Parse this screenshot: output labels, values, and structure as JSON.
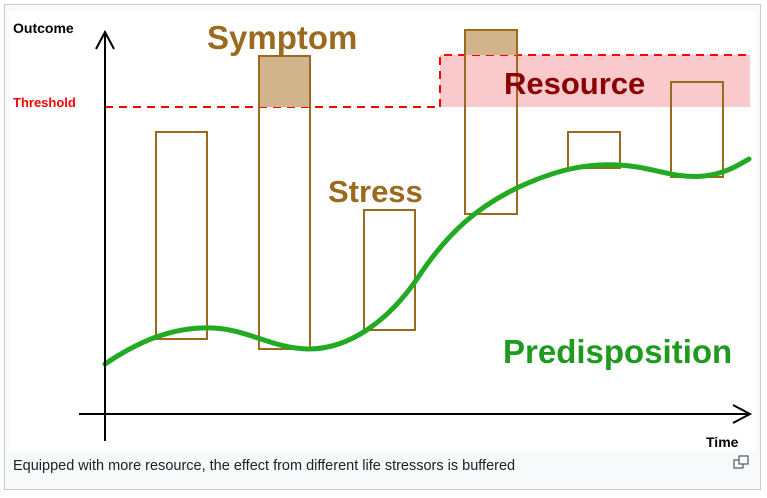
{
  "diagram": {
    "y_axis_label": "Outcome",
    "x_axis_label": "Time",
    "threshold_label": "Threshold",
    "symptom_label": "Symptom",
    "resource_label": "Resource",
    "stress_label": "Stress",
    "predisposition_label": "Predisposition",
    "colors": {
      "bar_stroke": "#9c6a1e",
      "symptom_fill": "#d2b48c",
      "label_brown": "#9c6a1e",
      "resource_fill": "#f9c9cc",
      "resource_text": "#8b0000",
      "threshold": "#ff0000",
      "predisposition": "#22aa22",
      "axis": "#000000"
    }
  },
  "caption": "Equipped with more resource, the effect from different life stressors is buffered",
  "enlarge_icon": "enlarge-icon"
}
